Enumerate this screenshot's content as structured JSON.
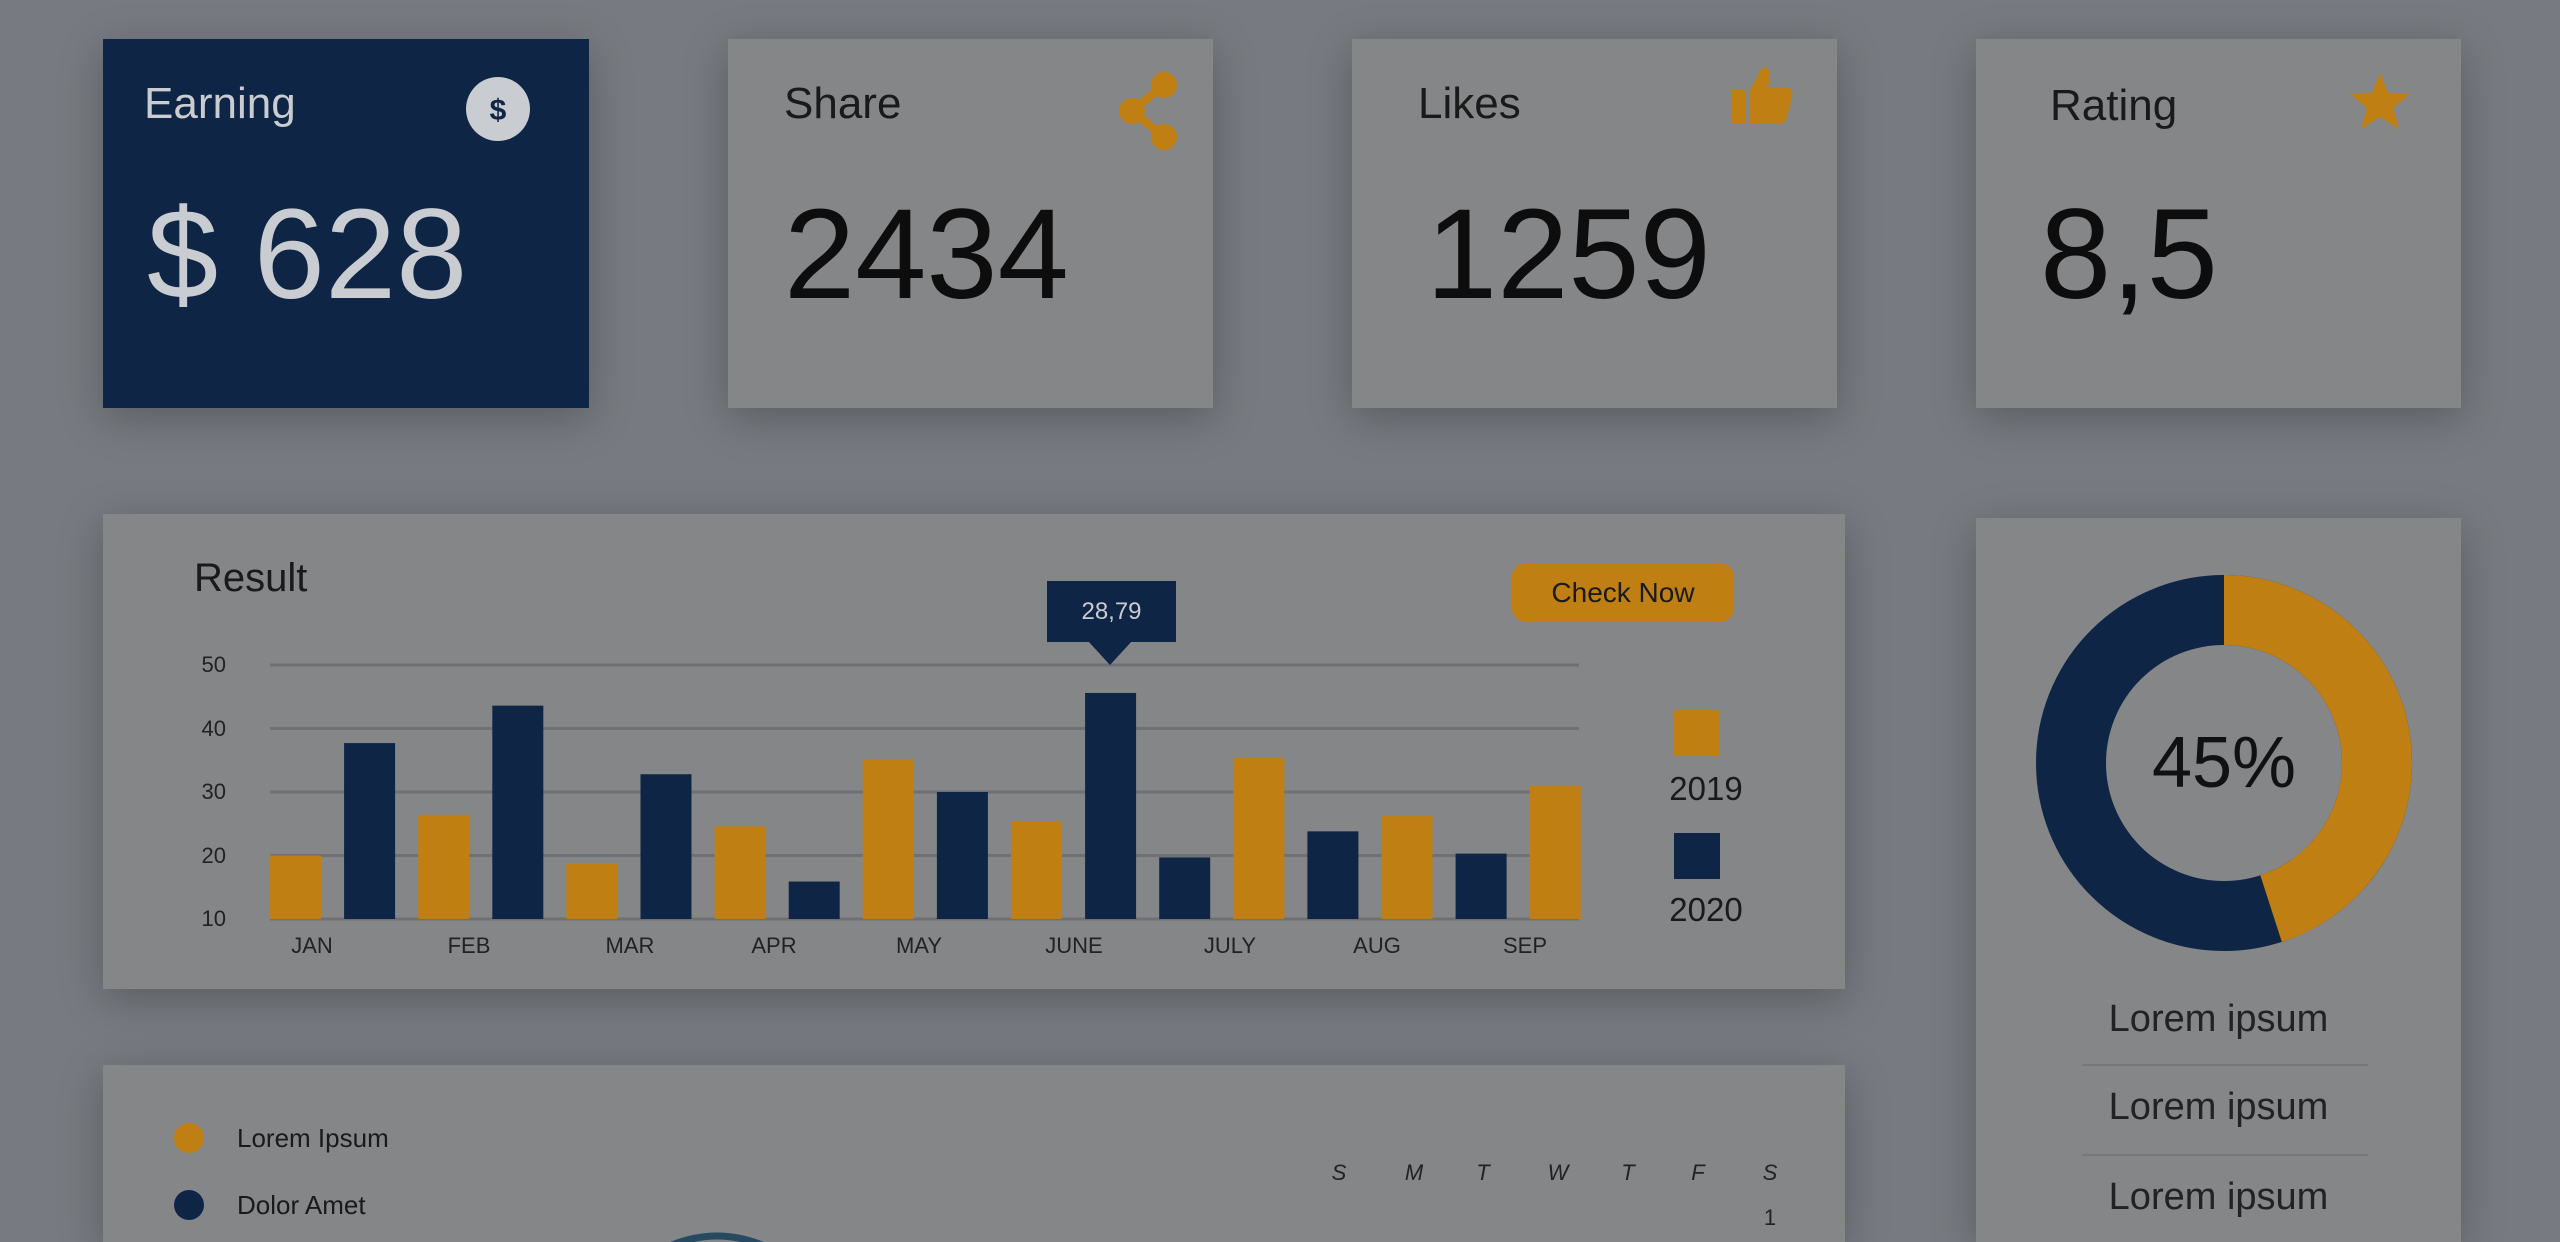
{
  "colors": {
    "accent_orange": "#c07f12",
    "navy": "#0f2545",
    "background": "#777b81",
    "card": "#858688"
  },
  "stats": [
    {
      "title": "Earning",
      "value": "$ 628",
      "icon": "dollar-icon"
    },
    {
      "title": "Share",
      "value": "2434",
      "icon": "share-icon"
    },
    {
      "title": "Likes",
      "value": "1259",
      "icon": "thumbs-up-icon"
    },
    {
      "title": "Rating",
      "value": "8,5",
      "icon": "star-icon"
    }
  ],
  "result": {
    "title": "Result",
    "button_label": "Check Now",
    "tooltip": "28,79"
  },
  "chart_data": {
    "type": "bar",
    "title": "Result",
    "categories": [
      "JAN",
      "FEB",
      "MAR",
      "APR",
      "MAY",
      "JUNE",
      "JULY",
      "AUG",
      "SEP"
    ],
    "y_ticks": [
      "50",
      "40",
      "30",
      "20",
      "10"
    ],
    "ylim": [
      10,
      50
    ],
    "grid": true,
    "legend_placement": "right",
    "series": [
      {
        "name": "2019",
        "color": "#c07f12",
        "values": [
          20,
          26.4,
          18.7,
          24.6,
          35.1,
          25.4,
          35.4,
          26.2,
          31
        ]
      },
      {
        "name": "2020",
        "color": "#0f2545",
        "values": [
          37.7,
          43.6,
          32.8,
          15.9,
          30,
          45.6,
          19.7,
          23.8,
          20.3
        ]
      }
    ]
  },
  "donut": {
    "percent": 45,
    "label": "45%",
    "items": [
      "Lorem ipsum",
      "Lorem ipsum",
      "Lorem ipsum"
    ]
  },
  "bottom": {
    "legend": [
      {
        "label": "Lorem Ipsum",
        "color": "#c07f12"
      },
      {
        "label": "Dolor Amet",
        "color": "#0f2545"
      }
    ],
    "weekdays": [
      "S",
      "M",
      "T",
      "W",
      "T",
      "F",
      "S"
    ],
    "first_day": "1"
  }
}
